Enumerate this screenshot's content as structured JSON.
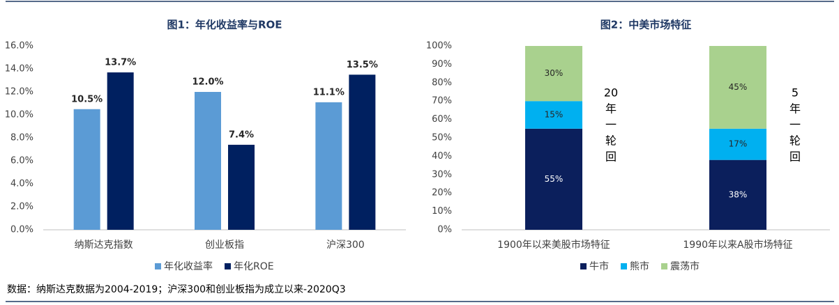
{
  "chart_data": [
    {
      "type": "bar",
      "title": "图1：年化收益率与ROE",
      "categories": [
        "纳斯达克指数",
        "创业板指",
        "沪深300"
      ],
      "series": [
        {
          "name": "年化收益率",
          "color": "#5b9bd5",
          "values": [
            10.5,
            12.0,
            11.1
          ],
          "value_labels": [
            "10.5%",
            "12.0%",
            "11.1%"
          ]
        },
        {
          "name": "年化ROE",
          "color": "#002060",
          "values": [
            13.7,
            7.4,
            13.5
          ],
          "value_labels": [
            "13.7%",
            "7.4%",
            "13.5%"
          ]
        }
      ],
      "ylim": [
        0,
        16
      ],
      "yticks": [
        {
          "value": 0,
          "label": "0.0%"
        },
        {
          "value": 2,
          "label": "2.0%"
        },
        {
          "value": 4,
          "label": "4.0%"
        },
        {
          "value": 6,
          "label": "6.0%"
        },
        {
          "value": 8,
          "label": "8.0%"
        },
        {
          "value": 10,
          "label": "10.0%"
        },
        {
          "value": 12,
          "label": "12.0%"
        },
        {
          "value": 14,
          "label": "14.0%"
        },
        {
          "value": 16,
          "label": "16.0%"
        }
      ],
      "grid": false
    },
    {
      "type": "stacked_bar",
      "title": "图2：中美市场特征",
      "categories": [
        "1900年以来美股市场特征",
        "1990年以来A股市场特征"
      ],
      "series": [
        {
          "name": "牛市",
          "color": "#0b1f5c",
          "values": [
            55,
            38
          ],
          "value_labels": [
            "55%",
            "38%"
          ]
        },
        {
          "name": "熊市",
          "color": "#00b0f0",
          "values": [
            15,
            17
          ],
          "value_labels": [
            "15%",
            "17%"
          ]
        },
        {
          "name": "震荡市",
          "color": "#a9d18e",
          "values": [
            30,
            45
          ],
          "value_labels": [
            "30%",
            "45%"
          ]
        }
      ],
      "ylim": [
        0,
        100
      ],
      "yticks": [
        {
          "value": 0,
          "label": "0%"
        },
        {
          "value": 10,
          "label": "10%"
        },
        {
          "value": 20,
          "label": "20%"
        },
        {
          "value": 30,
          "label": "30%"
        },
        {
          "value": 40,
          "label": "40%"
        },
        {
          "value": 50,
          "label": "50%"
        },
        {
          "value": 60,
          "label": "60%"
        },
        {
          "value": 70,
          "label": "70%"
        },
        {
          "value": 80,
          "label": "80%"
        },
        {
          "value": 90,
          "label": "90%"
        },
        {
          "value": 100,
          "label": "100%"
        }
      ],
      "annotations": [
        [
          "20",
          "年",
          "一",
          "轮",
          "回"
        ],
        [
          "5",
          "年",
          "一",
          "轮",
          "回"
        ]
      ],
      "grid": false
    }
  ],
  "source": "数据：纳斯达克数据为2004-2019；沪深300和创业板指为成立以来-2020Q3"
}
